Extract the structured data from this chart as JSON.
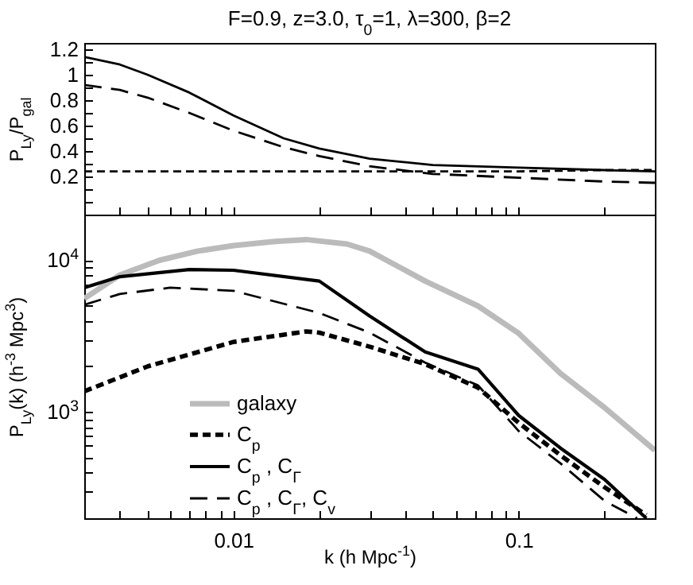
{
  "chart_data": [
    {
      "type": "line",
      "title": "F=0.9,  z=3.0,  τ$_{0}$=1,  λ=300,  β=2",
      "ylabel": "P$_{Ly}$/P$_{gal}$",
      "log": "x",
      "tick_labels": "y",
      "grid": false,
      "legend": false,
      "xlim": [
        0.003,
        0.3
      ],
      "ylim": [
        -0.1,
        1.25
      ],
      "xticks": [
        {
          "value": 0.003,
          "label": null
        },
        {
          "value": 0.004,
          "label": null
        },
        {
          "value": 0.005,
          "label": null
        },
        {
          "value": 0.006,
          "label": null
        },
        {
          "value": 0.007,
          "label": null
        },
        {
          "value": 0.008,
          "label": null
        },
        {
          "value": 0.009,
          "label": null
        },
        {
          "value": 0.01,
          "label": null
        },
        {
          "value": 0.02,
          "label": null
        },
        {
          "value": 0.03,
          "label": null
        },
        {
          "value": 0.04,
          "label": null
        },
        {
          "value": 0.05,
          "label": null
        },
        {
          "value": 0.06,
          "label": null
        },
        {
          "value": 0.07,
          "label": null
        },
        {
          "value": 0.08,
          "label": null
        },
        {
          "value": 0.09,
          "label": null
        },
        {
          "value": 0.1,
          "label": null
        },
        {
          "value": 0.2,
          "label": null
        },
        {
          "value": 0.3,
          "label": null
        }
      ],
      "yticks": [
        {
          "value": 0,
          "label": null
        },
        {
          "value": 0.1,
          "label": null
        },
        0.2,
        {
          "value": 0.3,
          "label": null
        },
        0.4,
        {
          "value": 0.5,
          "label": null
        },
        0.6,
        {
          "value": 0.7,
          "label": null
        },
        0.8,
        {
          "value": 0.9,
          "label": null
        },
        1,
        {
          "value": 1.1,
          "label": null
        },
        1.2
      ],
      "x": [
        0.003,
        0.004,
        0.005,
        0.007,
        0.01,
        0.015,
        0.02,
        0.03,
        0.05,
        0.1,
        0.2,
        0.3
      ],
      "series": [
        {
          "color": "#000000",
          "line_style": "dashed",
          "values": [
            0.24,
            0.24,
            0.24,
            0.24,
            0.24,
            0.24,
            0.24,
            0.24,
            0.24,
            0.24,
            0.25,
            0.25
          ]
        },
        {
          "color": "#000000",
          "line_style": "solid",
          "values": [
            1.14,
            1.08,
            1.0,
            0.86,
            0.68,
            0.5,
            0.42,
            0.34,
            0.29,
            0.27,
            0.25,
            0.24
          ]
        },
        {
          "color": "#000000",
          "line_style": "longdashed",
          "values": [
            0.92,
            0.88,
            0.82,
            0.7,
            0.56,
            0.43,
            0.36,
            0.28,
            0.22,
            0.19,
            0.16,
            0.15
          ]
        }
      ]
    },
    {
      "type": "line",
      "xlabel": "k  (h Mpc$^{-1}$)",
      "ylabel": "P$_{Ly}$(k)  (h$^{-3}$ Mpc$^{3}$)",
      "log": "xy",
      "grid": false,
      "legend": "bottom left",
      "xlim": [
        0.003,
        0.3
      ],
      "ylim": [
        200,
        20000
      ],
      "xticks": [
        {
          "value": 0.003,
          "label": null
        },
        {
          "value": 0.004,
          "label": null
        },
        {
          "value": 0.005,
          "label": null
        },
        {
          "value": 0.006,
          "label": null
        },
        {
          "value": 0.007,
          "label": null
        },
        {
          "value": 0.008,
          "label": null
        },
        {
          "value": 0.009,
          "label": null
        },
        0.01,
        {
          "value": 0.02,
          "label": null
        },
        {
          "value": 0.03,
          "label": null
        },
        {
          "value": 0.04,
          "label": null
        },
        {
          "value": 0.05,
          "label": null
        },
        {
          "value": 0.06,
          "label": null
        },
        {
          "value": 0.07,
          "label": null
        },
        {
          "value": 0.08,
          "label": null
        },
        {
          "value": 0.09,
          "label": null
        },
        0.1,
        {
          "value": 0.2,
          "label": null
        },
        {
          "value": 0.3,
          "label": null
        }
      ],
      "yticks": [
        {
          "value": 300,
          "label": null
        },
        {
          "value": 400,
          "label": null
        },
        {
          "value": 500,
          "label": null
        },
        {
          "value": 600,
          "label": null
        },
        {
          "value": 700,
          "label": null
        },
        {
          "value": 800,
          "label": null
        },
        {
          "value": 900,
          "label": null
        },
        {
          "value": 1000,
          "label": "10$^{3}$"
        },
        {
          "value": 2000,
          "label": null
        },
        {
          "value": 3000,
          "label": null
        },
        {
          "value": 4000,
          "label": null
        },
        {
          "value": 5000,
          "label": null
        },
        {
          "value": 6000,
          "label": null
        },
        {
          "value": 7000,
          "label": null
        },
        {
          "value": 8000,
          "label": null
        },
        {
          "value": 9000,
          "label": null
        },
        {
          "value": 10000,
          "label": "10$^{4}$"
        }
      ],
      "series": [
        {
          "name": "galaxy",
          "color": "#bbbbbb",
          "line_style": "solid",
          "x": [
            0.003,
            0.004,
            0.0055,
            0.0075,
            0.01,
            0.014,
            0.018,
            0.025,
            0.03,
            0.047,
            0.072,
            0.1,
            0.14,
            0.2,
            0.3
          ],
          "values": [
            5600,
            8000,
            10000,
            11500,
            12500,
            13300,
            13700,
            12800,
            11500,
            7300,
            5000,
            3300,
            1800,
            1070,
            560
          ]
        },
        {
          "name": "C$_{p}$",
          "color": "#000000",
          "line_style": "dashed",
          "x": [
            0.003,
            0.005,
            0.01,
            0.018,
            0.02,
            0.03,
            0.047,
            0.072,
            0.1,
            0.14,
            0.2,
            0.28
          ],
          "values": [
            1370,
            2000,
            2900,
            3400,
            3340,
            2700,
            2070,
            1450,
            850,
            520,
            320,
            210
          ]
        },
        {
          "name": "C$_{p}$ , C$_{Γ}$",
          "color": "#000000",
          "line_style": "solid",
          "x": [
            0.003,
            0.004,
            0.007,
            0.01,
            0.02,
            0.03,
            0.047,
            0.072,
            0.1,
            0.14,
            0.2,
            0.28
          ],
          "values": [
            6600,
            7800,
            8700,
            8600,
            7300,
            4300,
            2490,
            1920,
            950,
            580,
            360,
            200
          ]
        },
        {
          "name": "C$_{p}$ , C$_{Γ}$, C$_{v}$",
          "color": "#000000",
          "line_style": "longdashed",
          "x": [
            0.003,
            0.004,
            0.006,
            0.01,
            0.02,
            0.03,
            0.047,
            0.072,
            0.1,
            0.14,
            0.2,
            0.26
          ],
          "values": [
            5100,
            6000,
            6600,
            6300,
            4500,
            3340,
            2120,
            1500,
            750,
            460,
            260,
            200
          ]
        }
      ]
    }
  ]
}
